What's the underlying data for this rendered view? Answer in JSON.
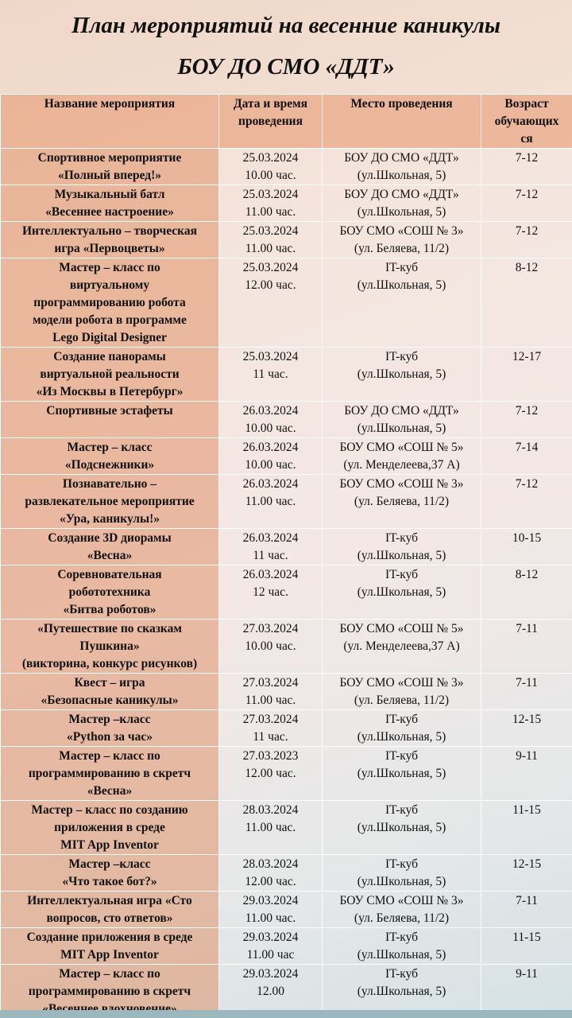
{
  "header": {
    "title_line1": "План мероприятий на весенние каникулы",
    "title_line2": "БОУ ДО СМО «ДДТ»"
  },
  "table": {
    "columns": [
      "Название мероприятия",
      "Дата и время\nпроведения",
      "Место проведения",
      "Возраст\nобучающих\nся"
    ],
    "rows": [
      [
        "Спортивное мероприятие\n«Полный вперед!»",
        "25.03.2024\n10.00 час.",
        "БОУ ДО СМО «ДДТ»\n(ул.Школьная, 5)",
        "7-12"
      ],
      [
        "Музыкальный батл\n«Весеннее настроение»",
        "25.03.2024\n11.00 час.",
        "БОУ ДО СМО «ДДТ»\n(ул.Школьная, 5)",
        "7-12"
      ],
      [
        "Интеллектуально – творческая\nигра «Первоцветы»",
        "25.03.2024\n11.00 час.",
        "БОУ СМО «СОШ № 3»\n(ул. Беляева, 11/2)",
        "7-12"
      ],
      [
        "Мастер – класс по\nвиртуальному\nпрограммированию робота\nмодели робота в программе\nLego Digital Designer",
        "25.03.2024\n12.00 час.",
        "IT-куб\n(ул.Школьная, 5)",
        "8-12"
      ],
      [
        "Создание панорамы\nвиртуальной реальности\n«Из Москвы в Петербург»",
        "25.03.2024\n11 час.",
        "IT-куб\n(ул.Школьная, 5)",
        "12-17"
      ],
      [
        "Спортивные эстафеты",
        "26.03.2024\n10.00 час.",
        "БОУ ДО СМО «ДДТ»\n(ул.Школьная, 5)",
        "7-12"
      ],
      [
        "Мастер – класс\n«Подснежники»",
        "26.03.2024\n10.00 час.",
        "БОУ СМО «СОШ № 5»\n(ул. Менделеева,37 А)",
        "7-14"
      ],
      [
        "Познавательно –\nразвлекательное мероприятие\n«Ура, каникулы!»",
        "26.03.2024\n11.00 час.",
        "БОУ СМО «СОШ № 3»\n(ул. Беляева, 11/2)",
        "7-12"
      ],
      [
        "Создание 3D диорамы\n«Весна»",
        "26.03.2024\n11 час.",
        "IT-куб\n(ул.Школьная, 5)",
        "10-15"
      ],
      [
        "Соревновательная\nробототехника\n«Битва роботов»",
        "26.03.2024\n12 час.",
        "IT-куб\n(ул.Школьная, 5)",
        "8-12"
      ],
      [
        "«Путешествие по сказкам\nПушкина»\n(викторина, конкурс рисунков)",
        "27.03.2024\n10.00 час.",
        "БОУ СМО «СОШ № 5»\n(ул. Менделеева,37 А)",
        "7-11"
      ],
      [
        "Квест – игра\n«Безопасные каникулы»",
        "27.03.2024\n11.00 час.",
        "БОУ СМО «СОШ № 3»\n(ул. Беляева, 11/2)",
        "7-11"
      ],
      [
        "Мастер –класс\n«Python за час»",
        "27.03.2024\n11 час.",
        "IT-куб\n(ул.Школьная, 5)",
        "12-15"
      ],
      [
        "Мастер – класс по\nпрограммированию в скретч\n«Весна»",
        "27.03.2023\n12.00 час.",
        "IT-куб\n(ул.Школьная, 5)",
        "9-11"
      ],
      [
        "Мастер – класс по созданию\nприложения в среде\nMIT App Inventor",
        "28.03.2024\n11.00 час.",
        "IT-куб\n(ул.Школьная, 5)",
        "11-15"
      ],
      [
        "Мастер –класс\n«Что такое бот?»",
        "28.03.2024\n12.00 час.",
        "IT-куб\n(ул.Школьная, 5)",
        "12-15"
      ],
      [
        "Интеллектуальная игра «Сто\nвопросов, сто ответов»",
        "29.03.2024\n11.00 час.",
        "БОУ СМО «СОШ № 3»\n(ул. Беляева, 11/2)",
        "7-11"
      ],
      [
        "Создание приложения в среде\nMIT App Inventor",
        "29.03.2024\n11.00 час",
        "IT-куб\n(ул.Школьная, 5)",
        "11-15"
      ],
      [
        "Мастер – класс по\nпрограммированию в скретч\n«Весеннее вдохновение»",
        "29.03.2024\n12.00",
        "IT-куб\n(ул.Школьная, 5)",
        "9-11"
      ]
    ]
  }
}
